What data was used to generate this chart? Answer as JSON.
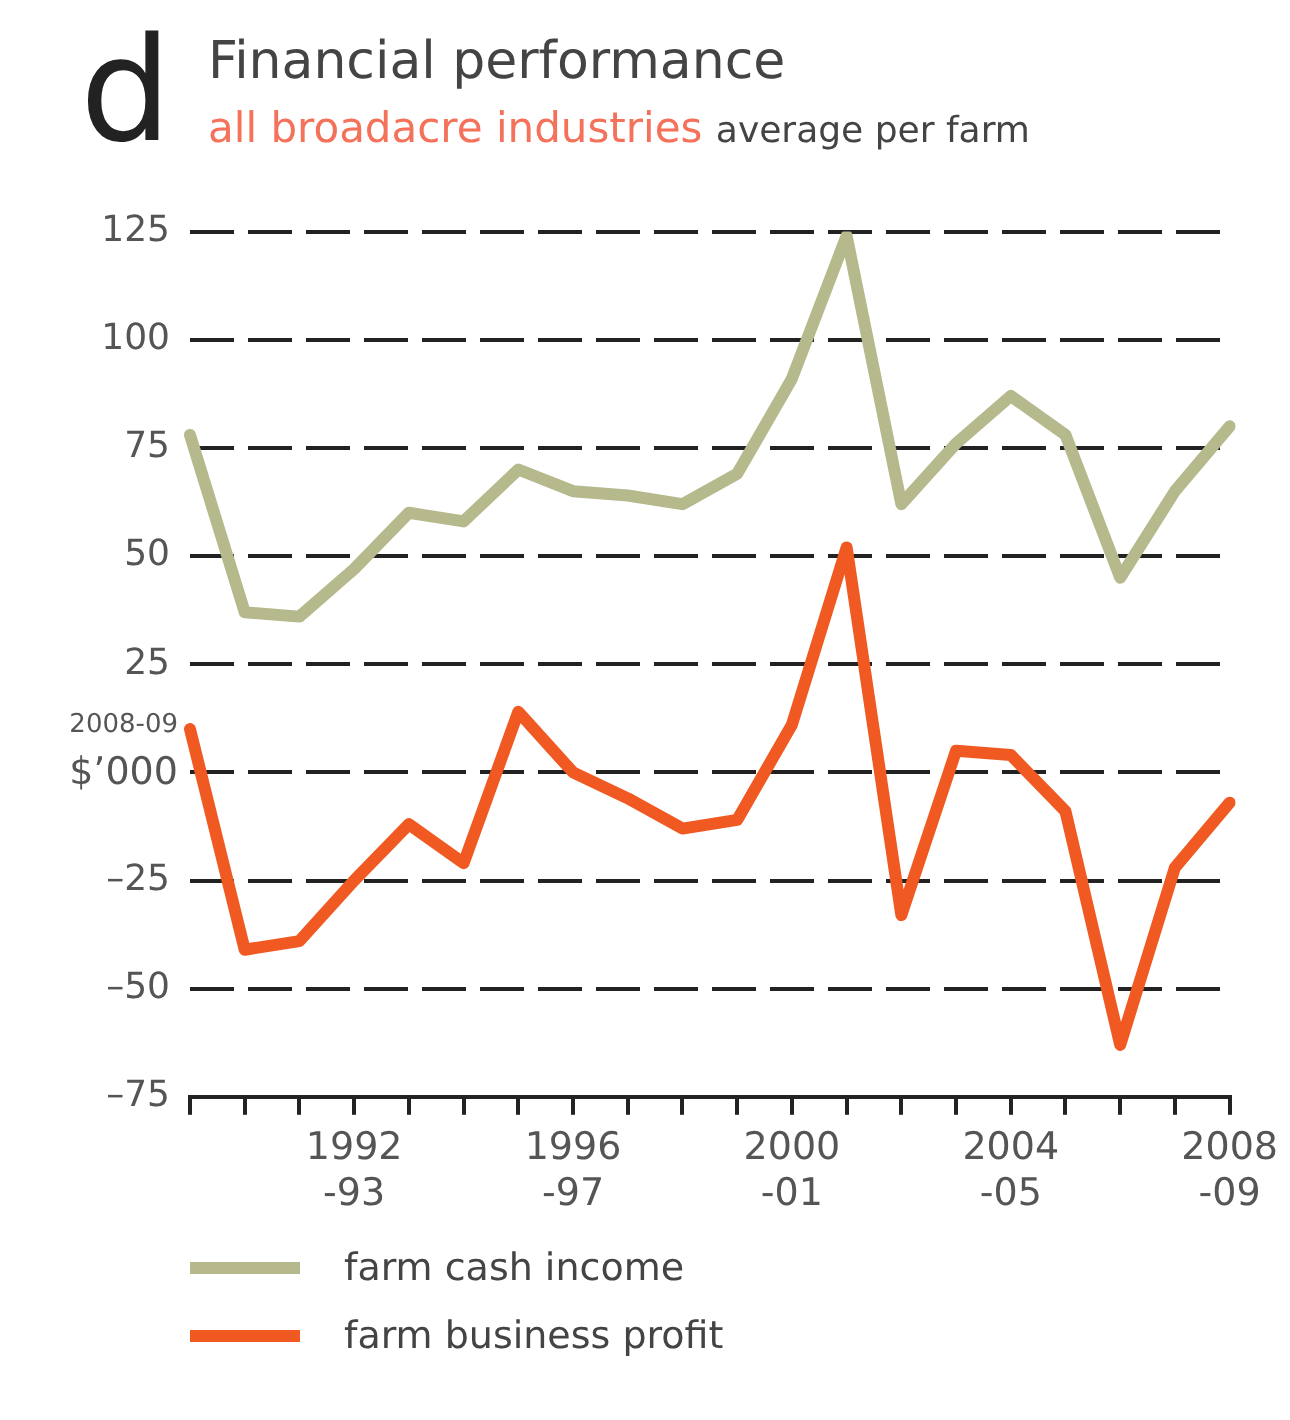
{
  "chart_data": {
    "type": "line",
    "title": "Financial performance",
    "subtitle": "all broadacre industries",
    "ylabel": "2008-09\n$’000",
    "annotations": [
      "d",
      "average per farm"
    ],
    "categories": [
      null,
      null,
      null,
      "1992\n-93",
      null,
      null,
      null,
      "1996\n-97",
      null,
      null,
      null,
      "2000\n-01",
      null,
      null,
      null,
      "2004\n-05",
      null,
      null,
      null,
      "2008\n-09"
    ],
    "series": [
      {
        "name": "farm cash income",
        "color": "#b5b98c",
        "values": [
          78,
          37,
          36,
          47,
          60,
          58,
          70,
          65,
          64,
          62,
          69,
          91,
          124,
          62,
          76,
          87,
          78,
          45,
          65,
          80
        ]
      },
      {
        "name": "farm business profit",
        "color": "#f05a22",
        "values": [
          10,
          -41,
          -39,
          -25,
          -12,
          -21,
          14,
          0,
          -6,
          -13,
          -11,
          11,
          52,
          -33,
          5,
          4,
          -9,
          -63,
          -22,
          -7
        ]
      }
    ],
    "ylim": [
      -75,
      125
    ],
    "yticks": [
      {
        "value": -75,
        "label": "–75"
      },
      {
        "value": -50,
        "label": "–50"
      },
      {
        "value": -25,
        "label": "–25"
      },
      {
        "value": 0,
        "label": null
      },
      25,
      50,
      75,
      100,
      125
    ],
    "grid": "y",
    "legend": "bottom",
    "marker": "none",
    "line_style": "solid"
  }
}
